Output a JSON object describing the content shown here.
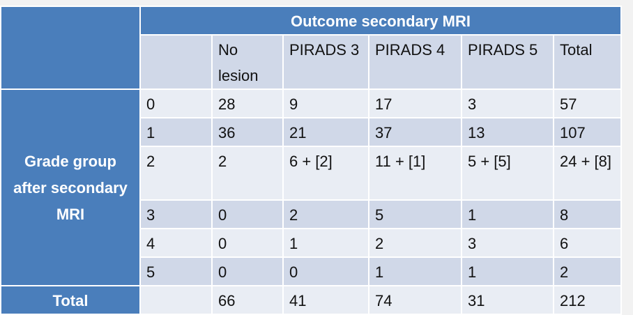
{
  "table": {
    "title": "Outcome secondary MRI",
    "row_header": "Grade group after secondary MRI",
    "column_headers": [
      "No lesion",
      "PIRADS 3",
      "PIRADS 4",
      "PIRADS 5",
      "Total"
    ],
    "rows": [
      [
        "0",
        28,
        9,
        17,
        3,
        57
      ],
      [
        "1",
        36,
        21,
        37,
        13,
        107
      ],
      [
        "2",
        2,
        "6 + [2]",
        "11 + [1]",
        "5 + [5]",
        "24 + [8]"
      ],
      [
        "3",
        0,
        2,
        5,
        1,
        8
      ],
      [
        "4",
        0,
        1,
        2,
        3,
        6
      ],
      [
        "5",
        0,
        0,
        1,
        1,
        2
      ]
    ],
    "total_label": "Total",
    "totals": [
      66,
      41,
      74,
      31,
      212
    ]
  }
}
